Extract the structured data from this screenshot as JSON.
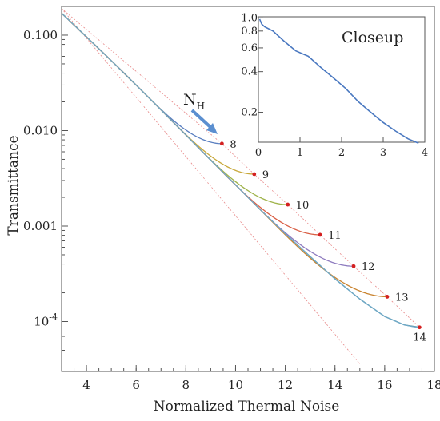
{
  "chart_data": {
    "type": "line",
    "xlabel": "Normalized Thermal Noise",
    "ylabel": "Transmittance",
    "x_ticks": [
      "4",
      "6",
      "8",
      "10",
      "12",
      "14",
      "16",
      "18"
    ],
    "y_ticks": [
      "10^-4",
      "0.001",
      "0.010",
      "0.100"
    ],
    "xlim": [
      3,
      18
    ],
    "ylim": [
      3e-05,
      0.2
    ],
    "yscale": "log",
    "grid": false,
    "legend": "none",
    "annotation_main": "N",
    "annotation_sub": "H",
    "envelope": {
      "points": [
        [
          3.0,
          0.17
        ],
        [
          4.0,
          0.096
        ],
        [
          5.0,
          0.054
        ],
        [
          6.0,
          0.03
        ],
        [
          7.0,
          0.0165
        ],
        [
          8.0,
          0.009
        ],
        [
          9.0,
          0.0049
        ],
        [
          10.0,
          0.0027
        ],
        [
          11.0,
          0.00148
        ],
        [
          12.0,
          0.00083
        ],
        [
          13.0,
          0.00048
        ],
        [
          14.0,
          0.00028
        ],
        [
          15.0,
          0.000172
        ],
        [
          16.0,
          0.000113
        ],
        [
          16.8,
          9.2e-05
        ],
        [
          17.4,
          8.7e-05
        ]
      ]
    },
    "bound_line": {
      "points": [
        [
          3.0,
          0.19
        ],
        [
          9.45,
          0.0073
        ],
        [
          10.75,
          0.0035
        ],
        [
          12.1,
          0.00168
        ],
        [
          13.4,
          0.00081
        ],
        [
          14.75,
          0.00038
        ],
        [
          16.1,
          0.000182
        ],
        [
          17.4,
          8.7e-05
        ]
      ]
    },
    "reference_line": {
      "points": [
        [
          3.0,
          0.19
        ],
        [
          15.0,
          3.6e-05
        ]
      ]
    },
    "series": [
      {
        "name": "8",
        "color": "#5a7fc0",
        "branch_x": 6.3,
        "end": [
          9.45,
          0.0073
        ]
      },
      {
        "name": "9",
        "color": "#c8a83a",
        "branch_x": 7.2,
        "end": [
          10.75,
          0.0035
        ]
      },
      {
        "name": "10",
        "color": "#9fb34a",
        "branch_x": 8.0,
        "end": [
          12.1,
          0.00168
        ]
      },
      {
        "name": "11",
        "color": "#d95f45",
        "branch_x": 8.9,
        "end": [
          13.4,
          0.00081
        ]
      },
      {
        "name": "12",
        "color": "#8e7bbf",
        "branch_x": 9.8,
        "end": [
          14.75,
          0.00038
        ]
      },
      {
        "name": "13",
        "color": "#c9832e",
        "branch_x": 10.7,
        "end": [
          16.1,
          0.000182
        ]
      },
      {
        "name": "14",
        "color": "#6fa9c8",
        "branch_x": 16.8,
        "end": [
          17.4,
          8.7e-05
        ]
      }
    ],
    "inset": {
      "title": "Closeup",
      "x_ticks": [
        "0",
        "1",
        "2",
        "3",
        "4"
      ],
      "y_ticks": [
        "0.2",
        "0.4",
        "0.6",
        "0.8",
        "1.0"
      ],
      "xlim": [
        0,
        4
      ],
      "ylim": [
        0.12,
        1.02
      ],
      "yscale": "log",
      "points": [
        [
          0.03,
          0.98
        ],
        [
          0.08,
          0.9
        ],
        [
          0.15,
          0.86
        ],
        [
          0.35,
          0.8
        ],
        [
          0.6,
          0.68
        ],
        [
          0.9,
          0.57
        ],
        [
          1.2,
          0.52
        ],
        [
          1.5,
          0.43
        ],
        [
          1.8,
          0.36
        ],
        [
          2.1,
          0.3
        ],
        [
          2.4,
          0.24
        ],
        [
          2.7,
          0.2
        ],
        [
          3.0,
          0.168
        ],
        [
          3.3,
          0.145
        ],
        [
          3.6,
          0.127
        ],
        [
          3.85,
          0.118
        ]
      ]
    }
  }
}
